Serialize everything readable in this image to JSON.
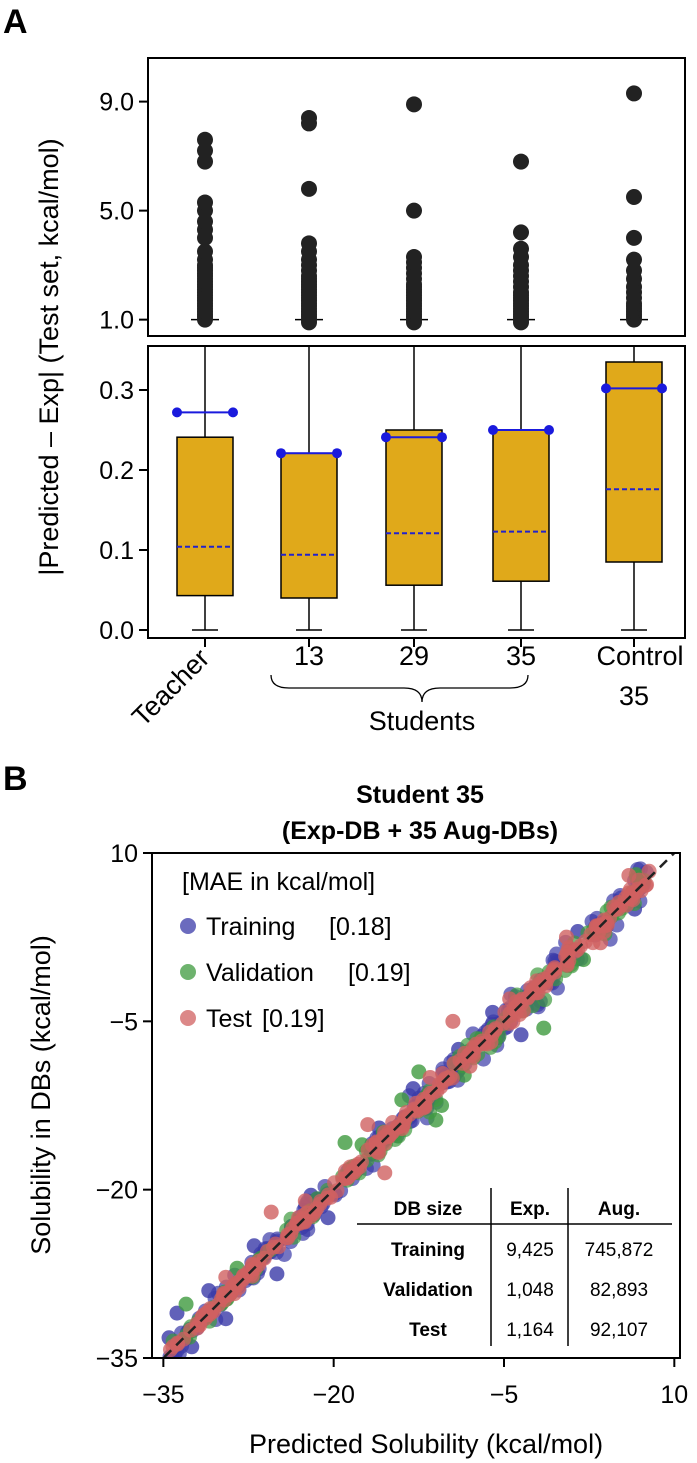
{
  "panel_labels": {
    "a": "A",
    "b": "B"
  },
  "chart_data": [
    {
      "type": "box",
      "panel": "A",
      "ylabel": "|Predicted – Exp| (Test set, kcal/mol)",
      "upper_ticks": [
        "1.0",
        "5.0",
        "9.0"
      ],
      "upper_tick_values": [
        1.0,
        5.0,
        9.0
      ],
      "lower_ticks": [
        "0.0",
        "0.1",
        "0.2",
        "0.3"
      ],
      "lower_tick_values": [
        0.0,
        0.1,
        0.2,
        0.3
      ],
      "upper_ylim": [
        0.4,
        10.6
      ],
      "lower_ylim": [
        -0.01,
        0.355
      ],
      "categories": [
        {
          "label": "Teacher",
          "label2": "",
          "rotated": true,
          "whisker_low": 0.0,
          "q1": 0.043,
          "median": 0.104,
          "q3": 0.241,
          "whisker_high": 0.355,
          "marker": 0.272,
          "outliers": [
            1.0,
            1.1,
            1.2,
            1.3,
            1.4,
            1.5,
            1.6,
            1.7,
            1.8,
            1.9,
            2.0,
            2.1,
            2.2,
            2.3,
            2.4,
            2.5,
            2.6,
            2.7,
            2.8,
            2.9,
            3.0,
            3.2,
            3.5,
            4.0,
            4.3,
            4.6,
            5.0,
            5.3,
            6.8,
            7.2,
            7.6
          ]
        },
        {
          "label": "13",
          "label2": "",
          "rotated": false,
          "whisker_low": 0.0,
          "q1": 0.04,
          "median": 0.094,
          "q3": 0.221,
          "whisker_high": 0.355,
          "marker": 0.221,
          "outliers": [
            0.9,
            1.0,
            1.1,
            1.2,
            1.3,
            1.4,
            1.5,
            1.6,
            1.7,
            1.8,
            1.9,
            2.0,
            2.1,
            2.2,
            2.3,
            2.4,
            2.5,
            2.6,
            2.8,
            3.0,
            3.2,
            3.5,
            3.8,
            5.8,
            8.2,
            8.4
          ]
        },
        {
          "label": "29",
          "label2": "",
          "rotated": false,
          "whisker_low": 0.0,
          "q1": 0.056,
          "median": 0.121,
          "q3": 0.25,
          "whisker_high": 0.355,
          "marker": 0.241,
          "outliers": [
            0.9,
            1.0,
            1.1,
            1.2,
            1.3,
            1.4,
            1.5,
            1.6,
            1.7,
            1.8,
            1.9,
            2.0,
            2.1,
            2.2,
            2.3,
            2.5,
            2.7,
            2.9,
            3.1,
            3.3,
            5.0,
            8.9
          ]
        },
        {
          "label": "35",
          "label2": "",
          "rotated": false,
          "whisker_low": 0.0,
          "q1": 0.061,
          "median": 0.123,
          "q3": 0.25,
          "whisker_high": 0.355,
          "marker": 0.25,
          "outliers": [
            0.9,
            1.0,
            1.1,
            1.2,
            1.3,
            1.4,
            1.5,
            1.6,
            1.7,
            1.8,
            1.9,
            2.0,
            2.2,
            2.4,
            2.6,
            2.8,
            3.0,
            3.3,
            3.6,
            4.2,
            6.8
          ]
        },
        {
          "label": "Control",
          "label2": "35",
          "rotated": false,
          "whisker_low": 0.0,
          "q1": 0.085,
          "median": 0.176,
          "q3": 0.335,
          "whisker_high": 0.355,
          "marker": 0.302,
          "outliers": [
            1.0,
            1.1,
            1.2,
            1.3,
            1.4,
            1.5,
            1.6,
            1.8,
            2.0,
            2.2,
            2.5,
            2.8,
            3.2,
            4.0,
            5.5,
            9.3
          ]
        }
      ],
      "group_label": "Students",
      "box_color": "#E0A91A",
      "median_color": "#2222CC",
      "marker_color": "#1A1ADD"
    },
    {
      "type": "scatter",
      "panel": "B",
      "title": "Student 35",
      "subtitle": "(Exp-DB + 35 Aug-DBs)",
      "xlabel": "Predicted Solubility (kcal/mol)",
      "ylabel": "Solubility in DBs (kcal/mol)",
      "xlim": [
        -36,
        10.5
      ],
      "ylim": [
        -35,
        10
      ],
      "xticks": [
        "−35",
        "−20",
        "−5",
        "10"
      ],
      "xtick_values": [
        -35,
        -20,
        -5,
        10
      ],
      "yticks": [
        "−35",
        "−20",
        "−5",
        "10"
      ],
      "ytick_values": [
        -35,
        -20,
        -5,
        10
      ],
      "legend_title": "[MAE in kcal/mol]",
      "series": [
        {
          "name": "Training",
          "mae": "[0.18]",
          "color": "#3A3AA8"
        },
        {
          "name": "Validation",
          "mae": "[0.19]",
          "color": "#3E9A3E"
        },
        {
          "name": "Test",
          "mae": "[0.19]",
          "color": "#D06060"
        }
      ],
      "outlier_points": {
        "Training": [
          [
            -34.5,
            -33.2
          ],
          [
            -33.8,
            -31.0
          ],
          [
            -32.5,
            -34.0
          ],
          [
            -31.0,
            -29.0
          ],
          [
            -29.5,
            -31.5
          ],
          [
            -27.0,
            -25.0
          ],
          [
            -25.0,
            -27.5
          ],
          [
            -22.0,
            -20.5
          ],
          [
            -20.5,
            -22.5
          ],
          [
            -16.0,
            -14.5
          ],
          [
            -13.0,
            -11.0
          ],
          [
            -9.0,
            -7.5
          ],
          [
            -6.0,
            -4.2
          ],
          [
            -3.5,
            -6.2
          ],
          [
            1.5,
            3.0
          ],
          [
            6.5,
            5.0
          ]
        ],
        "Validation": [
          [
            -33.0,
            -30.2
          ],
          [
            -28.5,
            -27.0
          ],
          [
            -19.0,
            -15.8
          ],
          [
            -17.5,
            -16.0
          ],
          [
            -14.0,
            -12.0
          ],
          [
            -11.0,
            -13.8
          ],
          [
            -12.5,
            -9.5
          ],
          [
            -10.5,
            -12.5
          ],
          [
            -8.5,
            -9.8
          ],
          [
            -1.5,
            -5.6
          ],
          [
            2.0,
            0.5
          ]
        ],
        "Test": [
          [
            -29.5,
            -27.8
          ],
          [
            -25.5,
            -22.0
          ],
          [
            -22.5,
            -21.0
          ],
          [
            -17.0,
            -14.2
          ],
          [
            -15.5,
            -18.5
          ],
          [
            -11.5,
            -10.0
          ],
          [
            -9.5,
            -5.0
          ],
          [
            -8.0,
            -9.0
          ],
          [
            -4.5,
            -3.0
          ],
          [
            0.5,
            2.5
          ],
          [
            3.5,
            2.0
          ],
          [
            6.0,
            8.0
          ]
        ]
      },
      "dataset_table": {
        "headers": [
          "DB size",
          "Exp.",
          "Aug."
        ],
        "rows": [
          {
            "name": "Training",
            "exp": "9,425",
            "aug": "745,872"
          },
          {
            "name": "Validation",
            "exp": "1,048",
            "aug": "82,893"
          },
          {
            "name": "Test",
            "exp": "1,164",
            "aug": "92,107"
          }
        ]
      }
    }
  ]
}
